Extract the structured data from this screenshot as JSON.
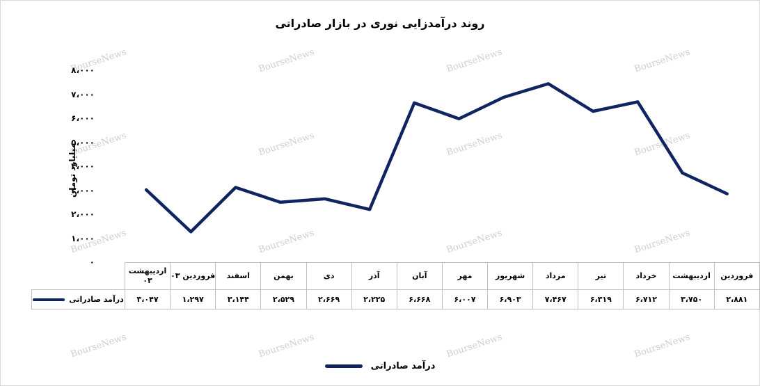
{
  "chart_data": {
    "type": "line",
    "title": "روند درآمدزایی نوری در بازار صادراتی",
    "ylabel": "میلیارد تومان",
    "ylim": [
      0,
      8000
    ],
    "yticks": [
      "۰",
      "۱،۰۰۰",
      "۲،۰۰۰",
      "۳،۰۰۰",
      "۴،۰۰۰",
      "۵،۰۰۰",
      "۶،۰۰۰",
      "۷،۰۰۰",
      "۸،۰۰۰"
    ],
    "categories": [
      "فروردین",
      "اردیبهشت",
      "خرداد",
      "تیر",
      "مرداد",
      "شهریور",
      "مهر",
      "آبان",
      "آذر",
      "دی",
      "بهمن",
      "اسفند",
      "فروردین ۰۳",
      "اردیبهشت ۰۳"
    ],
    "series": [
      {
        "name": "درآمد صادراتی",
        "values": [
          2881,
          3750,
          6712,
          6319,
          7467,
          6903,
          6007,
          6668,
          2225,
          2669,
          2529,
          3144,
          1297,
          3047
        ],
        "value_labels": [
          "۲،۸۸۱",
          "۳،۷۵۰",
          "۶،۷۱۲",
          "۶،۳۱۹",
          "۷،۴۶۷",
          "۶،۹۰۳",
          "۶،۰۰۷",
          "۶،۶۶۸",
          "۲،۲۲۵",
          "۲،۶۶۹",
          "۲،۵۲۹",
          "۳،۱۴۴",
          "۱،۲۹۷",
          "۳،۰۴۷"
        ],
        "color": "#0f2461"
      }
    ],
    "legend": "bottom",
    "data_table": true,
    "grid": false
  },
  "watermark": "BourseNews"
}
